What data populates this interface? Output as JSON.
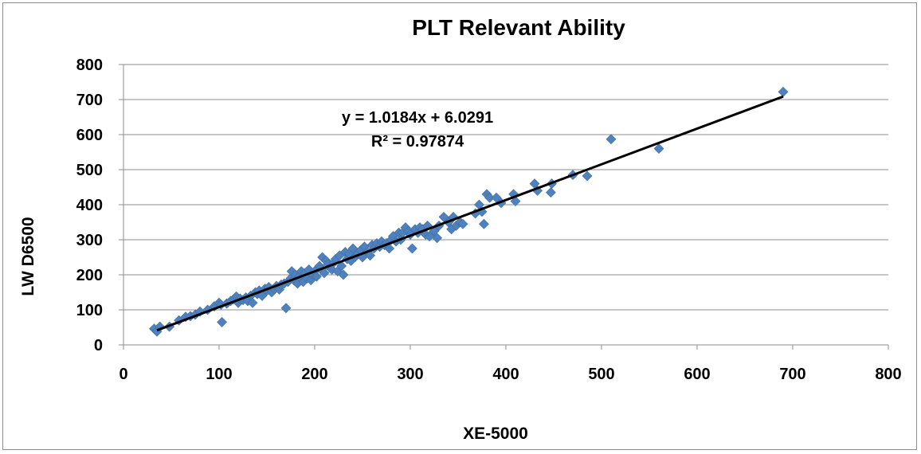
{
  "chart_data": {
    "type": "scatter",
    "title": "PLT Relevant Ability",
    "xlabel": "XE-5000",
    "ylabel": "LW D6500",
    "xlim": [
      0,
      800
    ],
    "ylim": [
      0,
      800
    ],
    "x_ticks": [
      "0",
      "100",
      "200",
      "300",
      "400",
      "500",
      "600",
      "700",
      "800"
    ],
    "y_ticks": [
      "0",
      "100",
      "200",
      "300",
      "400",
      "500",
      "600",
      "700",
      "800"
    ],
    "grid": "horizontal",
    "legend": "none",
    "marker_color": "#4f81bd",
    "trendline_color": "#000000",
    "trendline": {
      "slope": 1.0184,
      "intercept": 6.0291,
      "x_range": [
        35,
        690
      ],
      "equation": "y = 1.0184x + 6.0291",
      "r_squared": "R² = 0.97874"
    },
    "series": [
      {
        "points": [
          [
            32,
            46
          ],
          [
            35,
            38
          ],
          [
            38,
            52
          ],
          [
            48,
            52
          ],
          [
            58,
            70
          ],
          [
            65,
            80
          ],
          [
            70,
            82
          ],
          [
            75,
            86
          ],
          [
            80,
            95
          ],
          [
            88,
            100
          ],
          [
            95,
            110
          ],
          [
            100,
            120
          ],
          [
            102,
            115
          ],
          [
            103,
            65
          ],
          [
            108,
            118
          ],
          [
            112,
            125
          ],
          [
            115,
            130
          ],
          [
            118,
            138
          ],
          [
            120,
            120
          ],
          [
            122,
            132
          ],
          [
            125,
            128
          ],
          [
            128,
            135
          ],
          [
            130,
            125
          ],
          [
            133,
            140
          ],
          [
            135,
            120
          ],
          [
            138,
            150
          ],
          [
            140,
            145
          ],
          [
            142,
            155
          ],
          [
            145,
            140
          ],
          [
            148,
            160
          ],
          [
            150,
            155
          ],
          [
            152,
            165
          ],
          [
            155,
            150
          ],
          [
            158,
            160
          ],
          [
            160,
            168
          ],
          [
            163,
            158
          ],
          [
            165,
            172
          ],
          [
            168,
            175
          ],
          [
            170,
            105
          ],
          [
            172,
            180
          ],
          [
            175,
            190
          ],
          [
            176,
            210
          ],
          [
            178,
            185
          ],
          [
            180,
            200
          ],
          [
            182,
            175
          ],
          [
            184,
            195
          ],
          [
            186,
            210
          ],
          [
            188,
            180
          ],
          [
            190,
            205
          ],
          [
            192,
            190
          ],
          [
            194,
            215
          ],
          [
            196,
            185
          ],
          [
            198,
            200
          ],
          [
            200,
            210
          ],
          [
            202,
            195
          ],
          [
            205,
            225
          ],
          [
            207,
            215
          ],
          [
            208,
            250
          ],
          [
            210,
            205
          ],
          [
            212,
            240
          ],
          [
            214,
            230
          ],
          [
            216,
            220
          ],
          [
            218,
            215
          ],
          [
            220,
            235
          ],
          [
            222,
            245
          ],
          [
            224,
            210
          ],
          [
            226,
            255
          ],
          [
            228,
            225
          ],
          [
            230,
            200
          ],
          [
            232,
            265
          ],
          [
            234,
            245
          ],
          [
            236,
            260
          ],
          [
            238,
            240
          ],
          [
            240,
            275
          ],
          [
            242,
            250
          ],
          [
            245,
            260
          ],
          [
            248,
            270
          ],
          [
            250,
            250
          ],
          [
            252,
            280
          ],
          [
            255,
            265
          ],
          [
            258,
            255
          ],
          [
            260,
            285
          ],
          [
            262,
            275
          ],
          [
            265,
            290
          ],
          [
            268,
            280
          ],
          [
            270,
            295
          ],
          [
            273,
            285
          ],
          [
            275,
            290
          ],
          [
            278,
            275
          ],
          [
            280,
            300
          ],
          [
            282,
            310
          ],
          [
            285,
            295
          ],
          [
            288,
            320
          ],
          [
            290,
            300
          ],
          [
            292,
            320
          ],
          [
            295,
            335
          ],
          [
            298,
            325
          ],
          [
            300,
            315
          ],
          [
            302,
            275
          ],
          [
            305,
            330
          ],
          [
            308,
            320
          ],
          [
            310,
            335
          ],
          [
            313,
            330
          ],
          [
            316,
            315
          ],
          [
            318,
            340
          ],
          [
            320,
            310
          ],
          [
            325,
            325
          ],
          [
            328,
            305
          ],
          [
            330,
            340
          ],
          [
            335,
            365
          ],
          [
            340,
            350
          ],
          [
            343,
            330
          ],
          [
            345,
            365
          ],
          [
            348,
            340
          ],
          [
            352,
            350
          ],
          [
            355,
            345
          ],
          [
            368,
            375
          ],
          [
            372,
            400
          ],
          [
            375,
            380
          ],
          [
            377,
            345
          ],
          [
            380,
            430
          ],
          [
            383,
            420
          ],
          [
            390,
            420
          ],
          [
            395,
            405
          ],
          [
            408,
            430
          ],
          [
            410,
            410
          ],
          [
            430,
            460
          ],
          [
            433,
            440
          ],
          [
            447,
            435
          ],
          [
            448,
            460
          ],
          [
            470,
            485
          ],
          [
            485,
            482
          ],
          [
            510,
            587
          ],
          [
            560,
            560
          ],
          [
            690,
            722
          ]
        ]
      }
    ]
  }
}
